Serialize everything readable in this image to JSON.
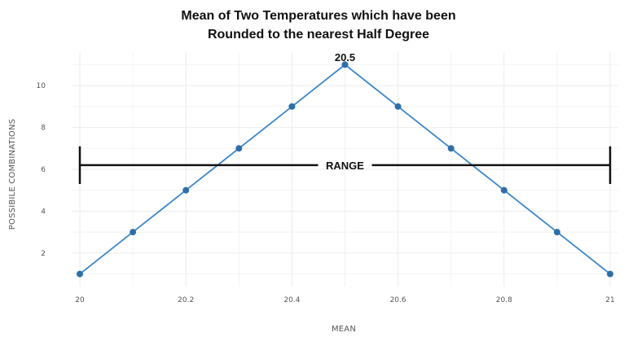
{
  "chart_data": {
    "type": "line",
    "title_lines": [
      "Mean of Two Temperatures which have been",
      "Rounded to the nearest Half Degree"
    ],
    "xlabel": "MEAN",
    "ylabel": "POSSIBILE COMBINATIONS",
    "x": [
      20.0,
      20.1,
      20.2,
      20.3,
      20.4,
      20.5,
      20.6,
      20.7,
      20.8,
      20.9,
      21.0
    ],
    "series": [
      {
        "values": [
          1,
          3,
          5,
          7,
          9,
          11,
          9,
          7,
          5,
          3,
          1
        ],
        "color": "#3a86c8"
      }
    ],
    "xlim": [
      20.0,
      21.0
    ],
    "ylim": [
      0.4,
      11.6
    ],
    "x_ticks": [
      20.0,
      20.2,
      20.4,
      20.6,
      20.8,
      21.0
    ],
    "x_tick_labels": [
      "20",
      "20.2",
      "20.4",
      "20.6",
      "20.8",
      "21"
    ],
    "y_ticks": [
      2,
      4,
      6,
      8,
      10
    ],
    "y_tick_labels": [
      "2",
      "4",
      "6",
      "8",
      "10"
    ],
    "grid": true,
    "annotations": {
      "peak": {
        "text": "20.5",
        "x": 20.5,
        "y": 11
      },
      "range": {
        "text": "RANGE",
        "x_start": 20.0,
        "x_end": 21.0,
        "y": 6.2,
        "cap_low": 5.3,
        "cap_high": 7.1
      }
    }
  }
}
